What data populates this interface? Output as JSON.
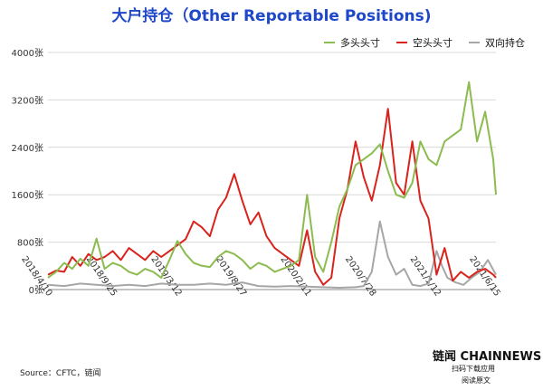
{
  "title": "大户持仓（Other Reportable Positions)",
  "source": "Source：CFTC，链闻",
  "brand": {
    "name": "链闻 CHAINNEWS",
    "line1": "扫码下载应用",
    "line2": "阅读原文"
  },
  "colors": {
    "long": "#8cbc4f",
    "short": "#d9231d",
    "spread": "#a6a6a6",
    "title": "#1f48c8"
  },
  "chart_data": {
    "type": "line",
    "title": "大户持仓（Other Reportable Positions)",
    "xlabel": "",
    "ylabel": "",
    "ylim": [
      0,
      4000
    ],
    "yticks": [
      0,
      800,
      1600,
      2400,
      3200,
      4000
    ],
    "ytick_labels": [
      "0张",
      "800张",
      "1600张",
      "2400张",
      "3200张",
      "4000张"
    ],
    "xlim": [
      "2018-04-10",
      "2021-06-15"
    ],
    "xticks": [
      "2018-04-10",
      "2018-09-25",
      "2019-03-12",
      "2019-08-27",
      "2020-02-11",
      "2020-07-28",
      "2021-01-12",
      "2021-06-15"
    ],
    "xtick_labels": [
      "2018/4/10",
      "2018/9/25",
      "2019/3/12",
      "2019/8/27",
      "2020/2/11",
      "2020/7/28",
      "2021/1/12",
      "2021/6/15"
    ],
    "legend_position": "top-right",
    "grid": "horizontal",
    "series": [
      {
        "name": "多头头寸",
        "color": "#8cbc4f",
        "x": [
          "2018-04-10",
          "2018-05-01",
          "2018-05-22",
          "2018-06-12",
          "2018-07-03",
          "2018-07-24",
          "2018-08-14",
          "2018-09-04",
          "2018-09-25",
          "2018-10-16",
          "2018-11-06",
          "2018-11-27",
          "2018-12-18",
          "2019-01-08",
          "2019-01-29",
          "2019-02-19",
          "2019-03-12",
          "2019-04-02",
          "2019-04-23",
          "2019-05-14",
          "2019-06-04",
          "2019-06-25",
          "2019-07-16",
          "2019-08-06",
          "2019-08-27",
          "2019-09-17",
          "2019-10-08",
          "2019-10-29",
          "2019-11-19",
          "2019-12-10",
          "2019-12-31",
          "2020-01-21",
          "2020-02-11",
          "2020-03-03",
          "2020-03-24",
          "2020-04-14",
          "2020-05-05",
          "2020-05-26",
          "2020-06-16",
          "2020-07-07",
          "2020-07-28",
          "2020-08-18",
          "2020-09-08",
          "2020-09-29",
          "2020-10-20",
          "2020-11-10",
          "2020-12-01",
          "2020-12-22",
          "2021-01-12",
          "2021-02-02",
          "2021-02-23",
          "2021-03-16",
          "2021-04-06",
          "2021-04-27",
          "2021-05-18",
          "2021-06-08",
          "2021-06-15"
        ],
        "y": [
          200,
          300,
          450,
          350,
          520,
          400,
          860,
          350,
          450,
          400,
          300,
          250,
          350,
          300,
          200,
          500,
          820,
          600,
          450,
          400,
          380,
          550,
          650,
          600,
          500,
          350,
          450,
          400,
          300,
          350,
          400,
          500,
          1600,
          550,
          300,
          800,
          1400,
          1700,
          2100,
          2200,
          2300,
          2450,
          2000,
          1600,
          1550,
          1800,
          2500,
          2200,
          2100,
          2500,
          2600,
          2700,
          3500,
          2500,
          3000,
          2200,
          1600
        ]
      },
      {
        "name": "空头头寸",
        "color": "#d9231d",
        "x": [
          "2018-04-10",
          "2018-05-01",
          "2018-05-22",
          "2018-06-12",
          "2018-07-03",
          "2018-07-24",
          "2018-08-14",
          "2018-09-04",
          "2018-09-25",
          "2018-10-16",
          "2018-11-06",
          "2018-11-27",
          "2018-12-18",
          "2019-01-08",
          "2019-01-29",
          "2019-02-19",
          "2019-03-12",
          "2019-04-02",
          "2019-04-23",
          "2019-05-14",
          "2019-06-04",
          "2019-06-25",
          "2019-07-16",
          "2019-08-06",
          "2019-08-27",
          "2019-09-17",
          "2019-10-08",
          "2019-10-29",
          "2019-11-19",
          "2019-12-10",
          "2019-12-31",
          "2020-01-21",
          "2020-02-11",
          "2020-03-03",
          "2020-03-24",
          "2020-04-14",
          "2020-05-05",
          "2020-05-26",
          "2020-06-16",
          "2020-07-07",
          "2020-07-28",
          "2020-08-18",
          "2020-09-08",
          "2020-09-29",
          "2020-10-20",
          "2020-11-10",
          "2020-12-01",
          "2020-12-22",
          "2021-01-12",
          "2021-02-02",
          "2021-02-23",
          "2021-03-16",
          "2021-04-06",
          "2021-04-27",
          "2021-05-18",
          "2021-06-08",
          "2021-06-15"
        ],
        "y": [
          250,
          320,
          300,
          550,
          400,
          600,
          500,
          550,
          650,
          500,
          700,
          600,
          500,
          650,
          550,
          650,
          750,
          850,
          1150,
          1050,
          900,
          1350,
          1550,
          1950,
          1500,
          1100,
          1300,
          900,
          700,
          600,
          500,
          400,
          1000,
          300,
          80,
          200,
          1200,
          1700,
          2500,
          1900,
          1500,
          2100,
          3050,
          1800,
          1600,
          2500,
          1500,
          1200,
          250,
          700,
          150,
          300,
          200,
          300,
          350,
          250,
          200
        ]
      },
      {
        "name": "双向持仓",
        "color": "#a6a6a6",
        "x": [
          "2018-04-10",
          "2018-05-22",
          "2018-07-03",
          "2018-08-14",
          "2018-09-25",
          "2018-11-06",
          "2018-12-18",
          "2019-01-29",
          "2019-03-12",
          "2019-04-23",
          "2019-06-04",
          "2019-07-16",
          "2019-08-27",
          "2019-10-08",
          "2019-11-19",
          "2019-12-31",
          "2020-02-11",
          "2020-03-24",
          "2020-05-05",
          "2020-06-16",
          "2020-07-07",
          "2020-07-28",
          "2020-08-18",
          "2020-09-08",
          "2020-09-29",
          "2020-10-20",
          "2020-11-10",
          "2020-12-01",
          "2020-12-22",
          "2021-01-12",
          "2021-01-26",
          "2021-02-09",
          "2021-03-02",
          "2021-03-23",
          "2021-04-13",
          "2021-05-04",
          "2021-05-25",
          "2021-06-15"
        ],
        "y": [
          80,
          60,
          100,
          80,
          60,
          80,
          60,
          100,
          80,
          80,
          100,
          80,
          120,
          60,
          50,
          60,
          50,
          40,
          30,
          40,
          60,
          300,
          1150,
          550,
          250,
          350,
          80,
          60,
          100,
          650,
          400,
          200,
          120,
          80,
          200,
          300,
          500,
          250
        ]
      }
    ]
  }
}
